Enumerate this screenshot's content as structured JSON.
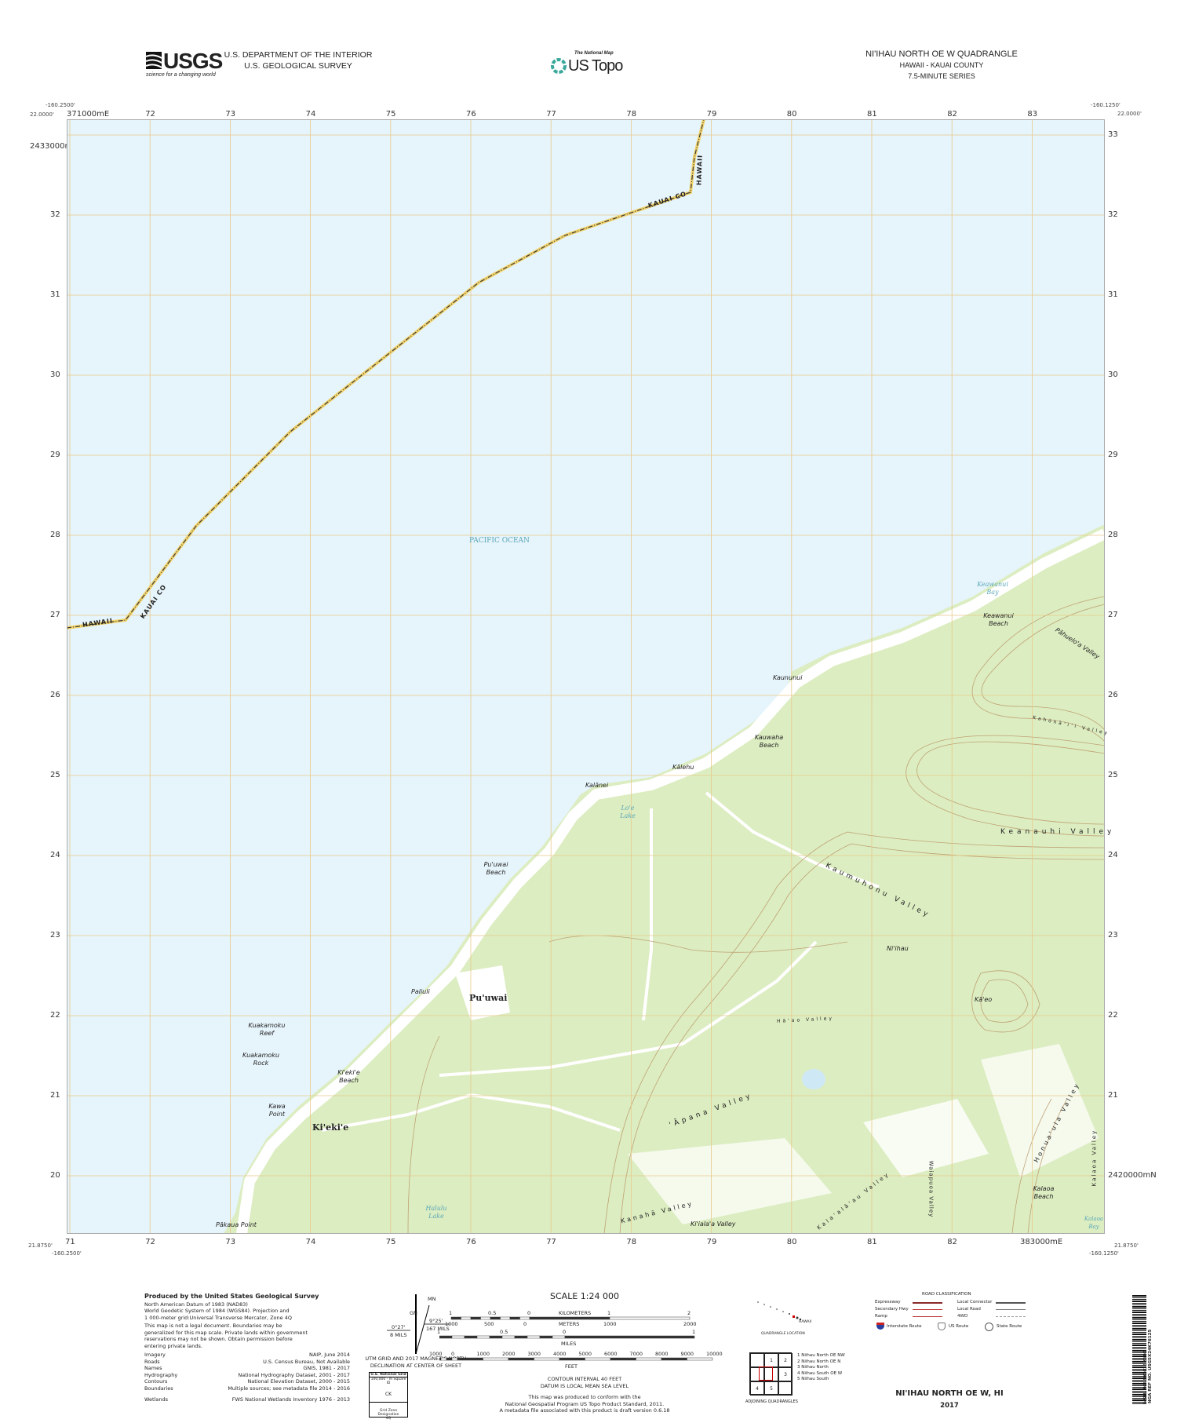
{
  "header": {
    "agency_line1": "U.S. DEPARTMENT OF THE INTERIOR",
    "agency_line2": "U.S. GEOLOGICAL SURVEY",
    "usgs_logo": "USGS",
    "usgs_tagline": "science for a changing world",
    "national_map": "The National Map",
    "us_topo": "US Topo",
    "quad_title": "NI'IHAU NORTH OE W QUADRANGLE",
    "state_county": "HAWAII - KAUAI COUNTY",
    "series": "7.5-MINUTE SERIES"
  },
  "frame": {
    "nw_lon": "-160.2500'",
    "nw_lat": "22.0000'",
    "ne_lon": "-160.1250'",
    "ne_lat": "22.0000'",
    "sw_lat": "21.8750'",
    "sw_lon": "-160.2500'",
    "se_lat": "21.8750'",
    "se_lon": "-160.1250'",
    "top_first_easting": "371000mE",
    "bottom_last_easting": "383000mE",
    "top_northing": "2433000mN",
    "right_northing": "2420000mN",
    "eastings_top": [
      "72",
      "73",
      "74",
      "75",
      "76",
      "77",
      "78",
      "79",
      "80",
      "81",
      "82",
      "83"
    ],
    "eastings_bottom": [
      "71",
      "72",
      "73",
      "74",
      "75",
      "76",
      "77",
      "78",
      "79",
      "80",
      "81",
      "82"
    ],
    "northings_left": [
      "32",
      "31",
      "30",
      "29",
      "28",
      "27",
      "26",
      "25",
      "24",
      "23",
      "22",
      "21",
      "20"
    ],
    "northings_right": [
      "33",
      "32",
      "31",
      "30",
      "29",
      "28",
      "27",
      "26",
      "25",
      "24",
      "23",
      "22",
      "21"
    ]
  },
  "map": {
    "colors": {
      "water": "#e6f4fb",
      "land": "#dcedc1",
      "open": "#ffffff",
      "grid": "#e8c98a",
      "contour": "#b48a5a",
      "boundary": "#3a3a3a",
      "boundary_halo": "#f2d36b"
    },
    "boundary_labels": [
      "HAWAII",
      "KAUAI CO",
      "KAUAI CO",
      "HAWAII"
    ],
    "labels": [
      "PACIFIC OCEAN",
      "Keawanui Bay",
      "Keawanui Beach",
      "Pāhuelo'a Valley",
      "Kaununui",
      "Kahōnā'i'i Valley",
      "Kauwaha Beach",
      "Kālehu",
      "Kalānei",
      "Lo'e Lake",
      "Keanauhi Valley",
      "Pu'uwai Beach",
      "Kaumuhonu Valley",
      "Ni'ihau",
      "Paliuli",
      "Pu'uwai",
      "Kā'eo",
      "Kuakamoku Reef",
      "Hā'ao Valley",
      "Kuakamoku Rock",
      "Ki'eki'e Beach",
      "'Āpana Valley",
      "Kawa Point",
      "Ki'eki'e",
      "Honua'ula Valley",
      "Waiapuoa Valley",
      "Kalaoa Beach",
      "Kalaoa Valley",
      "Kalaoa Bay",
      "Kanahā Valley",
      "Kala'alā'au Valley",
      "Ki'iala'a Valley",
      "Halulu Lake",
      "Pākaua Point"
    ]
  },
  "credits": {
    "title": "Produced by the United States Geological Survey",
    "lines": [
      "North American Datum of 1983 (NAD83)",
      "World Geodetic System of 1984 (WGS84).  Projection and",
      "1 000-meter grid:Universal Transverse Mercator, Zone 4Q"
    ],
    "disclaimer": [
      "This map is not a legal document. Boundaries may be",
      "generalized for this map scale. Private lands within government",
      "reservations may not be shown. Obtain permission before",
      "entering private lands."
    ],
    "sources": [
      {
        "k": "Imagery",
        "v": "NAIP, June 2014"
      },
      {
        "k": "Roads",
        "v": "U.S. Census Bureau, Not Available"
      },
      {
        "k": "Names",
        "v": "GNIS, 1981 - 2017"
      },
      {
        "k": "Hydrography",
        "v": "National Hydrography Dataset, 2001 - 2017"
      },
      {
        "k": "Contours",
        "v": "National Elevation Dataset, 2000 - 2015"
      },
      {
        "k": "Boundaries",
        "v": "Multiple sources; see metadata file 2014 - 2016"
      },
      {
        "k": "Wetlands",
        "v": "FWS National Wetlands Inventory 1976 - 2013"
      }
    ]
  },
  "declination": {
    "mn": "MN",
    "gn": "GN",
    "gn_angle": "0°27'",
    "gn_mils": "8 MILS",
    "mn_angle": "9°25'",
    "mn_mils": "167 MILS",
    "caption1": "UTM GRID AND 2017 MAGNETIC NORTH",
    "caption2": "DECLINATION AT CENTER OF SHEET"
  },
  "grid_box": {
    "title": "U.S. National Grid",
    "sub": "100,000 - m Square ID",
    "id": "CK",
    "zone_label": "Grid Zone Designation",
    "zone": "4Q"
  },
  "scale": {
    "title": "SCALE 1:24 000",
    "km_ticks": [
      "1",
      "0.5",
      "0",
      "1",
      "2"
    ],
    "km_label": "KILOMETERS",
    "m_ticks": [
      "1000",
      "500",
      "0",
      "1000",
      "2000"
    ],
    "m_label": "METERS",
    "mi_ticks": [
      "1",
      "0.5",
      "0",
      "1"
    ],
    "mi_label": "MILES",
    "ft_ticks": [
      "1000",
      "0",
      "1000",
      "2000",
      "3000",
      "4000",
      "5000",
      "6000",
      "7000",
      "8000",
      "9000",
      "10000"
    ],
    "ft_label": "FEET",
    "contour": "CONTOUR INTERVAL 40 FEET",
    "datum": "DATUM IS LOCAL MEAN SEA LEVEL",
    "conform": [
      "This map was produced to conform with the",
      "National Geospatial Program US Topo Product Standard, 2011.",
      "A metadata file associated with this product is draft version 0.6.18"
    ]
  },
  "location": {
    "hawaii": "HAWAII",
    "caption": "QUADRANGLE LOCATION",
    "adjoining_caption": "ADJOINING QUADRANGLES",
    "cells": [
      "",
      "1",
      "2",
      "",
      "",
      "3",
      "4",
      "5",
      ""
    ],
    "list": [
      "1 Niihau North OE NW",
      "2 Niihau North OE N",
      "3 Niihau North",
      "4 Niihau South OE W",
      "5 Niihau South"
    ]
  },
  "roads": {
    "title": "ROAD CLASSIFICATION",
    "left": [
      "Expressway",
      "Secondary Hwy",
      "Ramp"
    ],
    "right": [
      "Local Connector",
      "Local Road",
      "4WD"
    ],
    "routes": [
      "Interstate Route",
      "US Route",
      "State Route"
    ]
  },
  "footer": {
    "name": "NI'IHAU NORTH OE W,  HI",
    "year": "2017"
  },
  "barcode": {
    "nsn": "NSN. 7643016352330",
    "nga": "NGA REF NO. USGSX24K76125"
  }
}
